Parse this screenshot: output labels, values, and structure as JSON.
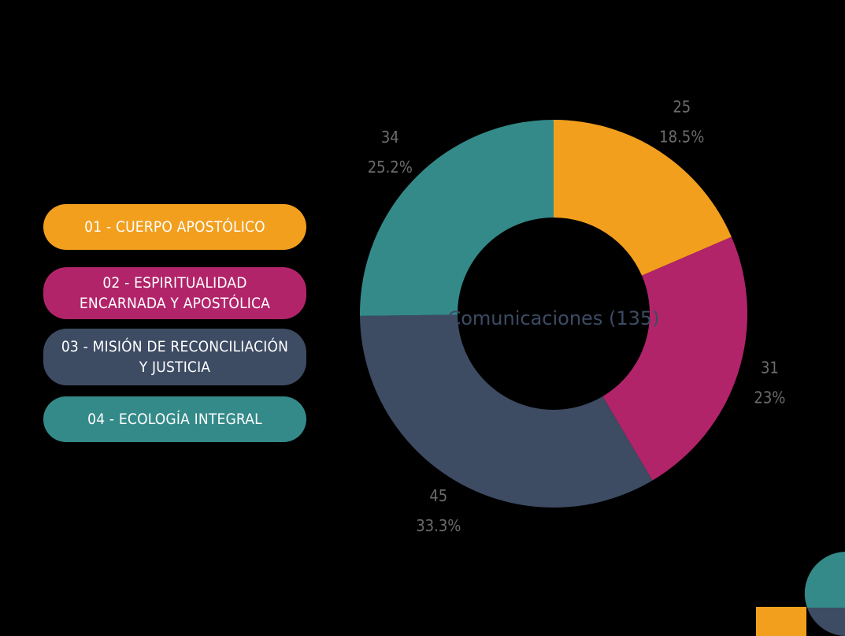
{
  "legend": [
    {
      "label": "01 - CUERPO APOSTÓLICO",
      "color": "#F29F1E"
    },
    {
      "label": "02 - ESPIRITUALIDAD ENCARNADA Y APOSTÓLICA",
      "color": "#B2246A"
    },
    {
      "label": "03 - MISIÓN DE RECONCILIACIÓN Y JUSTICIA",
      "color": "#3D4B63"
    },
    {
      "label": "04 - ECOLOGÍA INTEGRAL",
      "color": "#348A89"
    }
  ],
  "chart_data": {
    "type": "donut",
    "center_label": "Comunicaciones (135)",
    "total": 135,
    "slices": [
      {
        "category": "01 - CUERPO APOSTÓLICO",
        "value": 25,
        "percent": "18.5%",
        "color": "#F29F1E"
      },
      {
        "category": "02 - ESPIRITUALIDAD ENCARNADA Y APOSTÓLICA",
        "value": 31,
        "percent": "23%",
        "color": "#B2246A"
      },
      {
        "category": "03 - MISIÓN DE RECONCILIACIÓN Y JUSTICIA",
        "value": 45,
        "percent": "33.3%",
        "color": "#3D4B63"
      },
      {
        "category": "04 - ECOLOGÍA INTEGRAL",
        "value": 34,
        "percent": "25.2%",
        "color": "#348A89"
      }
    ]
  }
}
